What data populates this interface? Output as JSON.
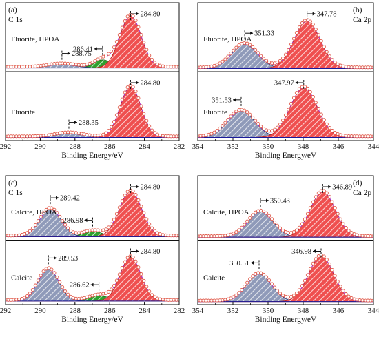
{
  "colors": {
    "main_fill": "#ef4f4f",
    "main_hatch": "#ffffff",
    "side_fill": "#8f9ab9",
    "side_hatch": "#ffffff",
    "small_fill": "#2ea12e",
    "envelope": "#a83ad6",
    "raw_points": "#e05a4a",
    "baseline": "#1a1a99",
    "main_edge": "#b5201f",
    "side_edge": "#2b3a7a",
    "small_edge": "#1f6f1f"
  },
  "chart_data": [
    {
      "type": "area",
      "panel_label": "(a)",
      "element_label": "C 1s",
      "xlabel": "Binding Energy/eV",
      "xlim": [
        292,
        282
      ],
      "x_ticks": [
        292,
        290,
        288,
        286,
        284,
        282
      ],
      "x_tick_labels": [
        "292",
        "290",
        "288",
        "286",
        "284",
        "282"
      ],
      "subplots": [
        {
          "sample_label": "Fluorite, HPOA",
          "peaks": [
            {
              "center": 284.8,
              "label": "284.80",
              "arrow": "right",
              "amplitude": 0.9,
              "sigma": 0.62,
              "role": "main"
            },
            {
              "center": 286.41,
              "label": "286.41",
              "arrow": "left",
              "amplitude": 0.14,
              "sigma": 0.5,
              "role": "small"
            },
            {
              "center": 288.75,
              "label": "288.75",
              "arrow": "right",
              "amplitude": 0.06,
              "sigma": 0.8,
              "role": "side"
            }
          ],
          "baseline": 0.04
        },
        {
          "sample_label": "Fluorite",
          "peaks": [
            {
              "center": 284.8,
              "label": "284.80",
              "arrow": "right",
              "amplitude": 0.88,
              "sigma": 0.6,
              "role": "main"
            },
            {
              "center": 288.35,
              "label": "288.35",
              "arrow": "right",
              "amplitude": 0.07,
              "sigma": 0.75,
              "role": "side"
            }
          ],
          "baseline": 0.03
        }
      ]
    },
    {
      "type": "area",
      "panel_label": "(b)",
      "element_label": "Ca 2p",
      "xlabel": "Binding Energy/eV",
      "xlim": [
        354,
        344
      ],
      "x_ticks": [
        354,
        352,
        350,
        348,
        346,
        344
      ],
      "x_tick_labels": [
        "354",
        "352",
        "350",
        "348",
        "346",
        "344"
      ],
      "subplots": [
        {
          "sample_label": "Fluorite, HPOA",
          "peaks": [
            {
              "center": 347.78,
              "label": "347.78",
              "arrow": "right",
              "amplitude": 0.82,
              "sigma": 0.75,
              "role": "main"
            },
            {
              "center": 351.33,
              "label": "351.33",
              "arrow": "right",
              "amplitude": 0.42,
              "sigma": 0.75,
              "role": "side"
            }
          ],
          "baseline": 0.03
        },
        {
          "sample_label": "Fluorite",
          "peaks": [
            {
              "center": 347.97,
              "label": "347.97",
              "arrow": "left",
              "amplitude": 0.86,
              "sigma": 0.78,
              "role": "main"
            },
            {
              "center": 351.53,
              "label": "351.53",
              "arrow": "left",
              "amplitude": 0.46,
              "sigma": 0.78,
              "role": "side"
            }
          ],
          "baseline": 0.03
        }
      ]
    },
    {
      "type": "area",
      "panel_label": "(c)",
      "element_label": "C 1s",
      "xlabel": "Binding Energy/eV",
      "xlim": [
        292,
        282
      ],
      "x_ticks": [
        292,
        290,
        288,
        286,
        284,
        282
      ],
      "x_tick_labels": [
        "292",
        "290",
        "288",
        "286",
        "284",
        "282"
      ],
      "subplots": [
        {
          "sample_label": "Calcite, HPOA",
          "peaks": [
            {
              "center": 284.8,
              "label": "284.80",
              "arrow": "right",
              "amplitude": 0.85,
              "sigma": 0.65,
              "role": "main"
            },
            {
              "center": 286.98,
              "label": "286.98",
              "arrow": "left",
              "amplitude": 0.1,
              "sigma": 0.55,
              "role": "small"
            },
            {
              "center": 289.42,
              "label": "289.42",
              "arrow": "right",
              "amplitude": 0.52,
              "sigma": 0.62,
              "role": "side"
            }
          ],
          "baseline": 0.04
        },
        {
          "sample_label": "Calcite",
          "peaks": [
            {
              "center": 284.8,
              "label": "284.80",
              "arrow": "right",
              "amplitude": 0.82,
              "sigma": 0.6,
              "role": "main"
            },
            {
              "center": 286.62,
              "label": "286.62",
              "arrow": "left",
              "amplitude": 0.1,
              "sigma": 0.6,
              "role": "small"
            },
            {
              "center": 289.53,
              "label": "289.53",
              "arrow": "right",
              "amplitude": 0.6,
              "sigma": 0.6,
              "role": "side"
            }
          ],
          "baseline": 0.04
        }
      ]
    },
    {
      "type": "area",
      "panel_label": "(d)",
      "element_label": "Ca 2p",
      "xlabel": "Binding Energy/eV",
      "xlim": [
        354,
        344
      ],
      "x_ticks": [
        354,
        352,
        350,
        348,
        346,
        344
      ],
      "x_tick_labels": [
        "354",
        "352",
        "350",
        "348",
        "346",
        "344"
      ],
      "subplots": [
        {
          "sample_label": "Calcite, HPOA",
          "peaks": [
            {
              "center": 346.89,
              "label": "346.89",
              "arrow": "right",
              "amplitude": 0.85,
              "sigma": 0.72,
              "role": "main"
            },
            {
              "center": 350.43,
              "label": "350.43",
              "arrow": "right",
              "amplitude": 0.48,
              "sigma": 0.72,
              "role": "side"
            }
          ],
          "baseline": 0.03
        },
        {
          "sample_label": "Calcite",
          "peaks": [
            {
              "center": 346.98,
              "label": "346.98",
              "arrow": "left",
              "amplitude": 0.85,
              "sigma": 0.72,
              "role": "main"
            },
            {
              "center": 350.51,
              "label": "350.51",
              "arrow": "left",
              "amplitude": 0.52,
              "sigma": 0.72,
              "role": "side"
            }
          ],
          "baseline": 0.03
        }
      ]
    }
  ]
}
